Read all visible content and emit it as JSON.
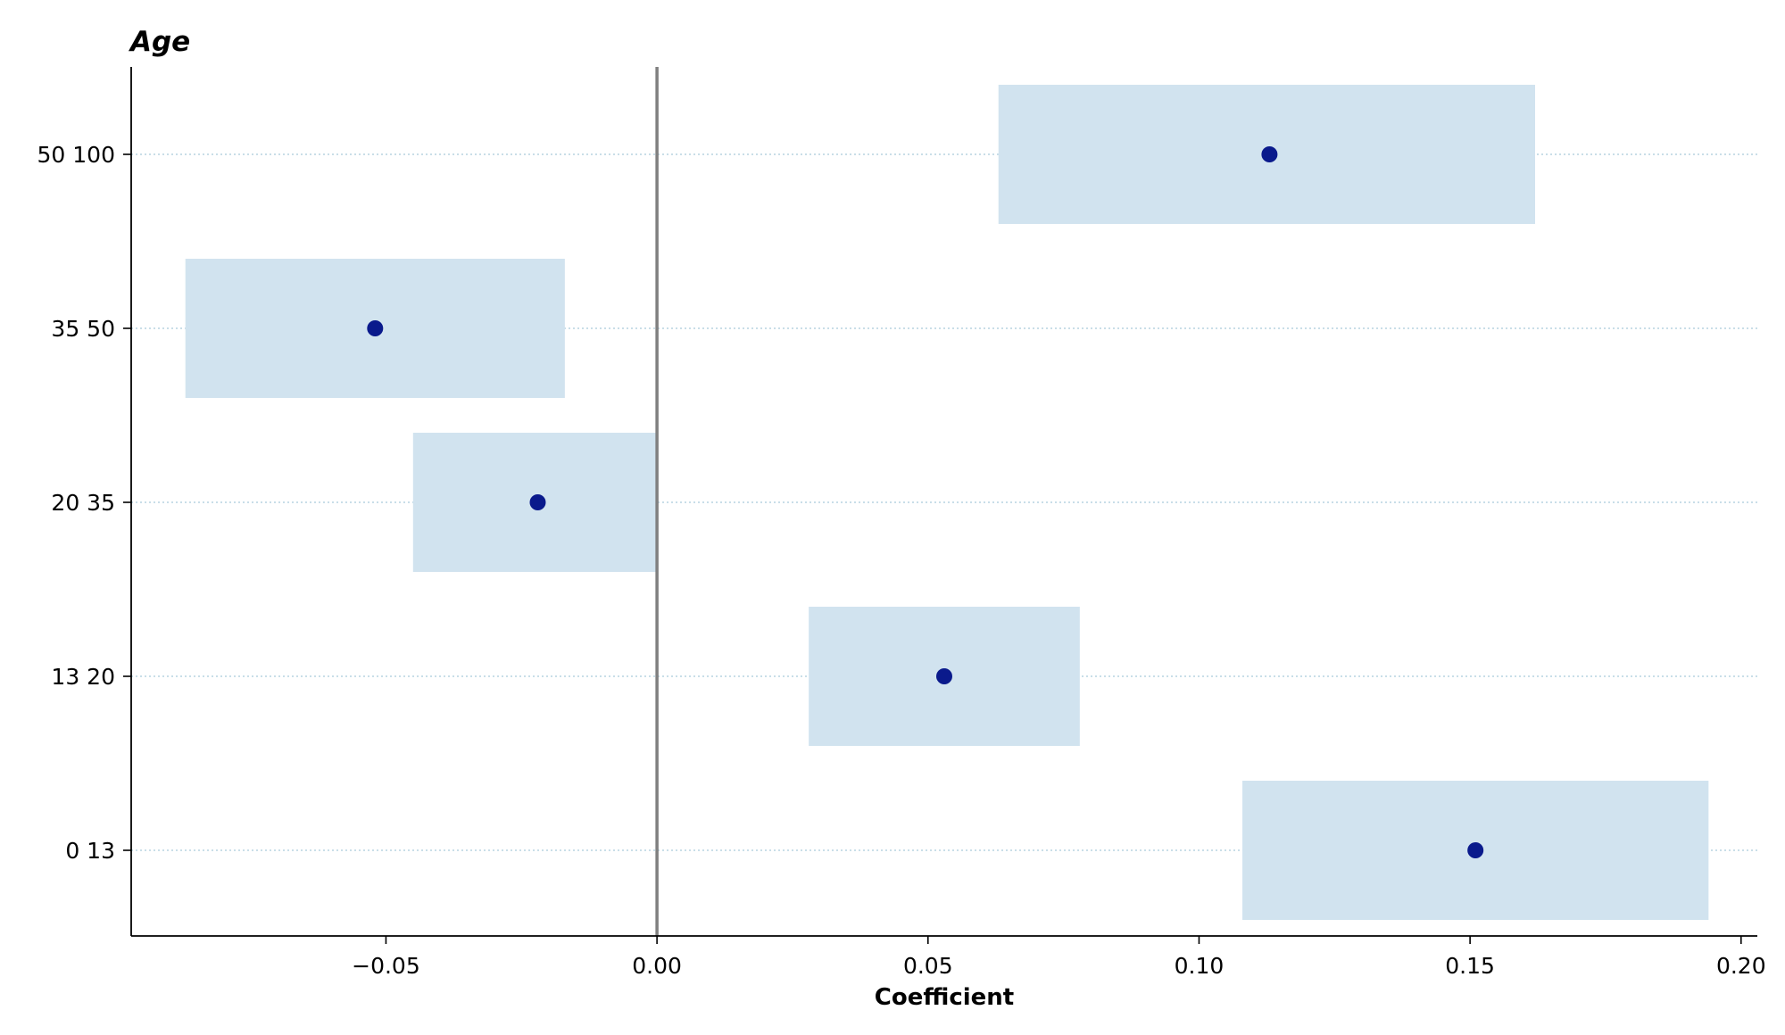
{
  "chart_data": {
    "type": "scatter",
    "title": "Age",
    "xlabel": "Coefficient",
    "ylabel": "",
    "xlim": [
      -0.097,
      0.203
    ],
    "x_ticks": [
      -0.05,
      0.0,
      0.05,
      0.1,
      0.15,
      0.2
    ],
    "x_tick_labels": [
      "−0.05",
      "0.00",
      "0.05",
      "0.10",
      "0.15",
      "0.20"
    ],
    "reference_line_x": 0.0,
    "grid": "horizontal dotted",
    "categories": [
      "0 13",
      "13 20",
      "20 35",
      "35 50",
      "50 100"
    ],
    "series": [
      {
        "estimates": [
          0.151,
          0.053,
          -0.022,
          -0.052,
          0.113
        ],
        "ci_low": [
          0.108,
          0.028,
          -0.045,
          -0.087,
          0.063
        ],
        "ci_high": [
          0.194,
          0.078,
          0.0,
          -0.017,
          0.162
        ]
      }
    ],
    "colors": {
      "point": "#0a1a8c",
      "interval": "#d1e3ef",
      "reference_line": "#808080",
      "grid": "#a9c9db",
      "axis": "#000000"
    }
  }
}
